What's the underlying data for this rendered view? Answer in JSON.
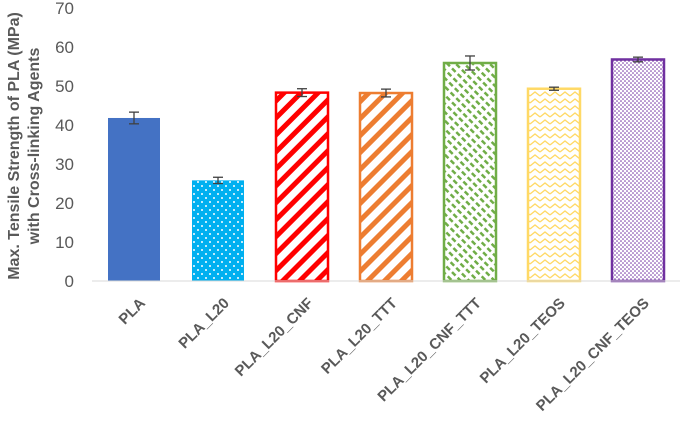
{
  "chart_data": {
    "type": "bar",
    "title": "",
    "xlabel": "",
    "ylabel_line1": "Max. Tensile Strength of PLA (MPa)",
    "ylabel_line2": "with Cross-linking Agents",
    "ylim": [
      0,
      70
    ],
    "yticks": [
      0,
      10,
      20,
      30,
      40,
      50,
      60,
      70
    ],
    "grid": false,
    "legend": "none",
    "categories": [
      "PLA",
      "PLA_L20",
      "PLA_L20_CNF",
      "PLA_L20_TTT",
      "PLA_L20_CNF_TTT",
      "PLA_L20_TEOS",
      "PLA_L20_CNF_TEOS"
    ],
    "values": [
      41.8,
      25.8,
      48.3,
      48.2,
      55.9,
      49.3,
      56.8
    ],
    "errors": [
      1.5,
      0.8,
      1.0,
      1.0,
      1.8,
      0.4,
      0.6
    ],
    "fills": [
      {
        "style": "solid",
        "color": "#4472C4"
      },
      {
        "style": "dots",
        "color": "#00B0F0"
      },
      {
        "style": "wide-diagonal",
        "color": "#FF0000"
      },
      {
        "style": "wide-diagonal",
        "color": "#ED7D31"
      },
      {
        "style": "dashed-diagonal",
        "color": "#70AD47"
      },
      {
        "style": "zigzag",
        "color": "#FFD966"
      },
      {
        "style": "small-dots",
        "color": "#7030A0"
      }
    ]
  }
}
